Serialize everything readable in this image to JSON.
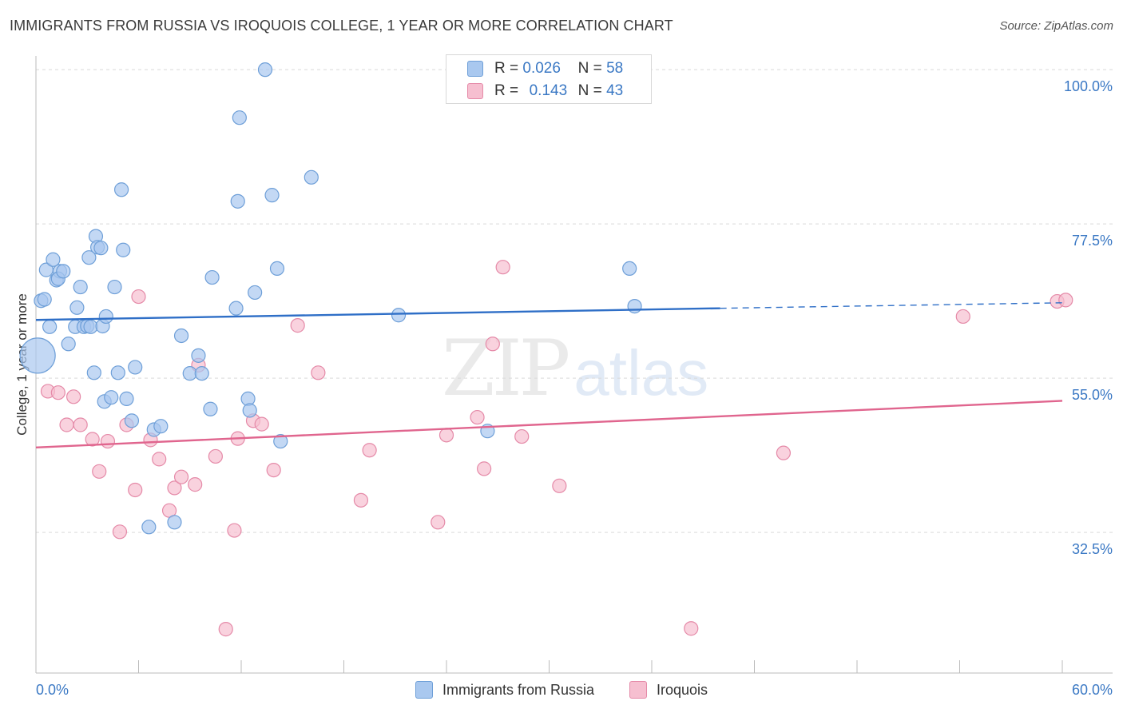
{
  "header": {
    "title": "IMMIGRANTS FROM RUSSIA VS IROQUOIS COLLEGE, 1 YEAR OR MORE CORRELATION CHART",
    "source": "Source: ZipAtlas.com"
  },
  "watermark": {
    "zip": "ZIP",
    "atlas": "atlas"
  },
  "legend": {
    "rows": [
      {
        "r_label": "R =",
        "r_value": "0.026",
        "n_label": "N =",
        "n_value": "58"
      },
      {
        "r_label": "R =",
        "r_value": "0.143",
        "n_label": "N =",
        "n_value": "43"
      }
    ]
  },
  "bottom_legend": {
    "series1": "Immigrants from Russia",
    "series2": "Iroquois"
  },
  "colors": {
    "blue_fill": "#a9c8ef",
    "blue_stroke": "#6e9fd8",
    "blue_line": "#2f6fc7",
    "pink_fill": "#f6bfd0",
    "pink_stroke": "#e58aa8",
    "pink_line": "#e0658e",
    "tick_label": "#3a78c4",
    "grid": "#d9d9d9"
  },
  "chart_data": {
    "type": "scatter",
    "title": "IMMIGRANTS FROM RUSSIA VS IROQUOIS COLLEGE, 1 YEAR OR MORE CORRELATION CHART",
    "xlabel": "",
    "ylabel": "College, 1 year or more",
    "xlim": [
      0,
      60
    ],
    "ylim": [
      12,
      102
    ],
    "x_tick_labels": [
      "0.0%",
      "60.0%"
    ],
    "y_ticks": [
      {
        "value": 100,
        "label": "100.0%"
      },
      {
        "value": 77.5,
        "label": "77.5%"
      },
      {
        "value": 55,
        "label": "55.0%"
      },
      {
        "value": 32.5,
        "label": "32.5%"
      }
    ],
    "series": [
      {
        "name": "Immigrants from Russia",
        "r": 0.026,
        "n": 58,
        "trend": {
          "x0": 0,
          "y0": 63.5,
          "x1": 40,
          "y1": 65.2,
          "dash_to_x": 60,
          "dash_to_y": 66.0
        },
        "points": [
          [
            0.1,
            58.3
          ],
          [
            0.3,
            66.3
          ],
          [
            0.5,
            66.5
          ],
          [
            0.8,
            62.5
          ],
          [
            0.6,
            70.8
          ],
          [
            1.0,
            72.3
          ],
          [
            1.2,
            69.3
          ],
          [
            1.4,
            70.6
          ],
          [
            1.3,
            69.5
          ],
          [
            1.6,
            70.6
          ],
          [
            1.9,
            60.0
          ],
          [
            2.3,
            62.5
          ],
          [
            2.4,
            65.3
          ],
          [
            2.6,
            68.3
          ],
          [
            2.8,
            62.5
          ],
          [
            3.0,
            62.6
          ],
          [
            3.2,
            62.5
          ],
          [
            3.1,
            72.6
          ],
          [
            3.4,
            55.8
          ],
          [
            3.5,
            75.7
          ],
          [
            3.6,
            74.1
          ],
          [
            3.8,
            74.0
          ],
          [
            3.9,
            62.6
          ],
          [
            4.1,
            64.0
          ],
          [
            4.0,
            51.6
          ],
          [
            4.4,
            52.2
          ],
          [
            4.6,
            68.3
          ],
          [
            4.8,
            55.8
          ],
          [
            5.0,
            82.5
          ],
          [
            5.1,
            73.7
          ],
          [
            5.3,
            52.0
          ],
          [
            5.6,
            48.8
          ],
          [
            5.8,
            56.6
          ],
          [
            6.6,
            33.3
          ],
          [
            6.9,
            47.5
          ],
          [
            7.3,
            48.0
          ],
          [
            8.1,
            34.0
          ],
          [
            8.5,
            61.2
          ],
          [
            9.0,
            55.7
          ],
          [
            9.5,
            58.3
          ],
          [
            9.7,
            55.7
          ],
          [
            10.2,
            50.5
          ],
          [
            10.3,
            69.7
          ],
          [
            11.7,
            65.2
          ],
          [
            11.8,
            80.8
          ],
          [
            11.9,
            93.0
          ],
          [
            12.4,
            52.0
          ],
          [
            12.5,
            50.3
          ],
          [
            12.8,
            67.5
          ],
          [
            13.4,
            100.0
          ],
          [
            13.8,
            81.7
          ],
          [
            14.1,
            71.0
          ],
          [
            14.3,
            45.8
          ],
          [
            16.1,
            84.3
          ],
          [
            21.2,
            64.2
          ],
          [
            26.4,
            47.3
          ],
          [
            34.7,
            71.0
          ],
          [
            35.0,
            65.5
          ]
        ]
      },
      {
        "name": "Iroquois",
        "r": 0.143,
        "n": 43,
        "trend": {
          "x0": 0,
          "y0": 44.9,
          "x1": 60,
          "y1": 51.7
        },
        "points": [
          [
            0.7,
            53.1
          ],
          [
            1.3,
            52.9
          ],
          [
            1.8,
            48.2
          ],
          [
            2.2,
            52.3
          ],
          [
            2.6,
            48.2
          ],
          [
            3.3,
            46.1
          ],
          [
            3.7,
            41.4
          ],
          [
            4.2,
            45.8
          ],
          [
            5.3,
            48.2
          ],
          [
            4.9,
            32.6
          ],
          [
            5.8,
            38.7
          ],
          [
            6.0,
            66.9
          ],
          [
            6.7,
            46.0
          ],
          [
            7.2,
            43.2
          ],
          [
            7.8,
            35.7
          ],
          [
            8.1,
            39.0
          ],
          [
            8.5,
            40.6
          ],
          [
            9.3,
            39.5
          ],
          [
            9.5,
            56.9
          ],
          [
            10.5,
            43.6
          ],
          [
            11.1,
            18.4
          ],
          [
            11.6,
            32.8
          ],
          [
            11.8,
            46.2
          ],
          [
            12.7,
            48.8
          ],
          [
            13.2,
            48.3
          ],
          [
            13.9,
            41.6
          ],
          [
            15.3,
            62.7
          ],
          [
            16.5,
            55.8
          ],
          [
            19.0,
            37.2
          ],
          [
            19.5,
            44.5
          ],
          [
            23.5,
            34.0
          ],
          [
            24.0,
            46.7
          ],
          [
            25.8,
            49.3
          ],
          [
            26.2,
            41.8
          ],
          [
            26.7,
            60.0
          ],
          [
            27.3,
            71.2
          ],
          [
            28.4,
            46.5
          ],
          [
            30.6,
            39.3
          ],
          [
            38.3,
            18.5
          ],
          [
            43.7,
            44.1
          ],
          [
            54.2,
            64.0
          ],
          [
            59.7,
            66.2
          ],
          [
            60.2,
            66.4
          ]
        ]
      }
    ]
  }
}
